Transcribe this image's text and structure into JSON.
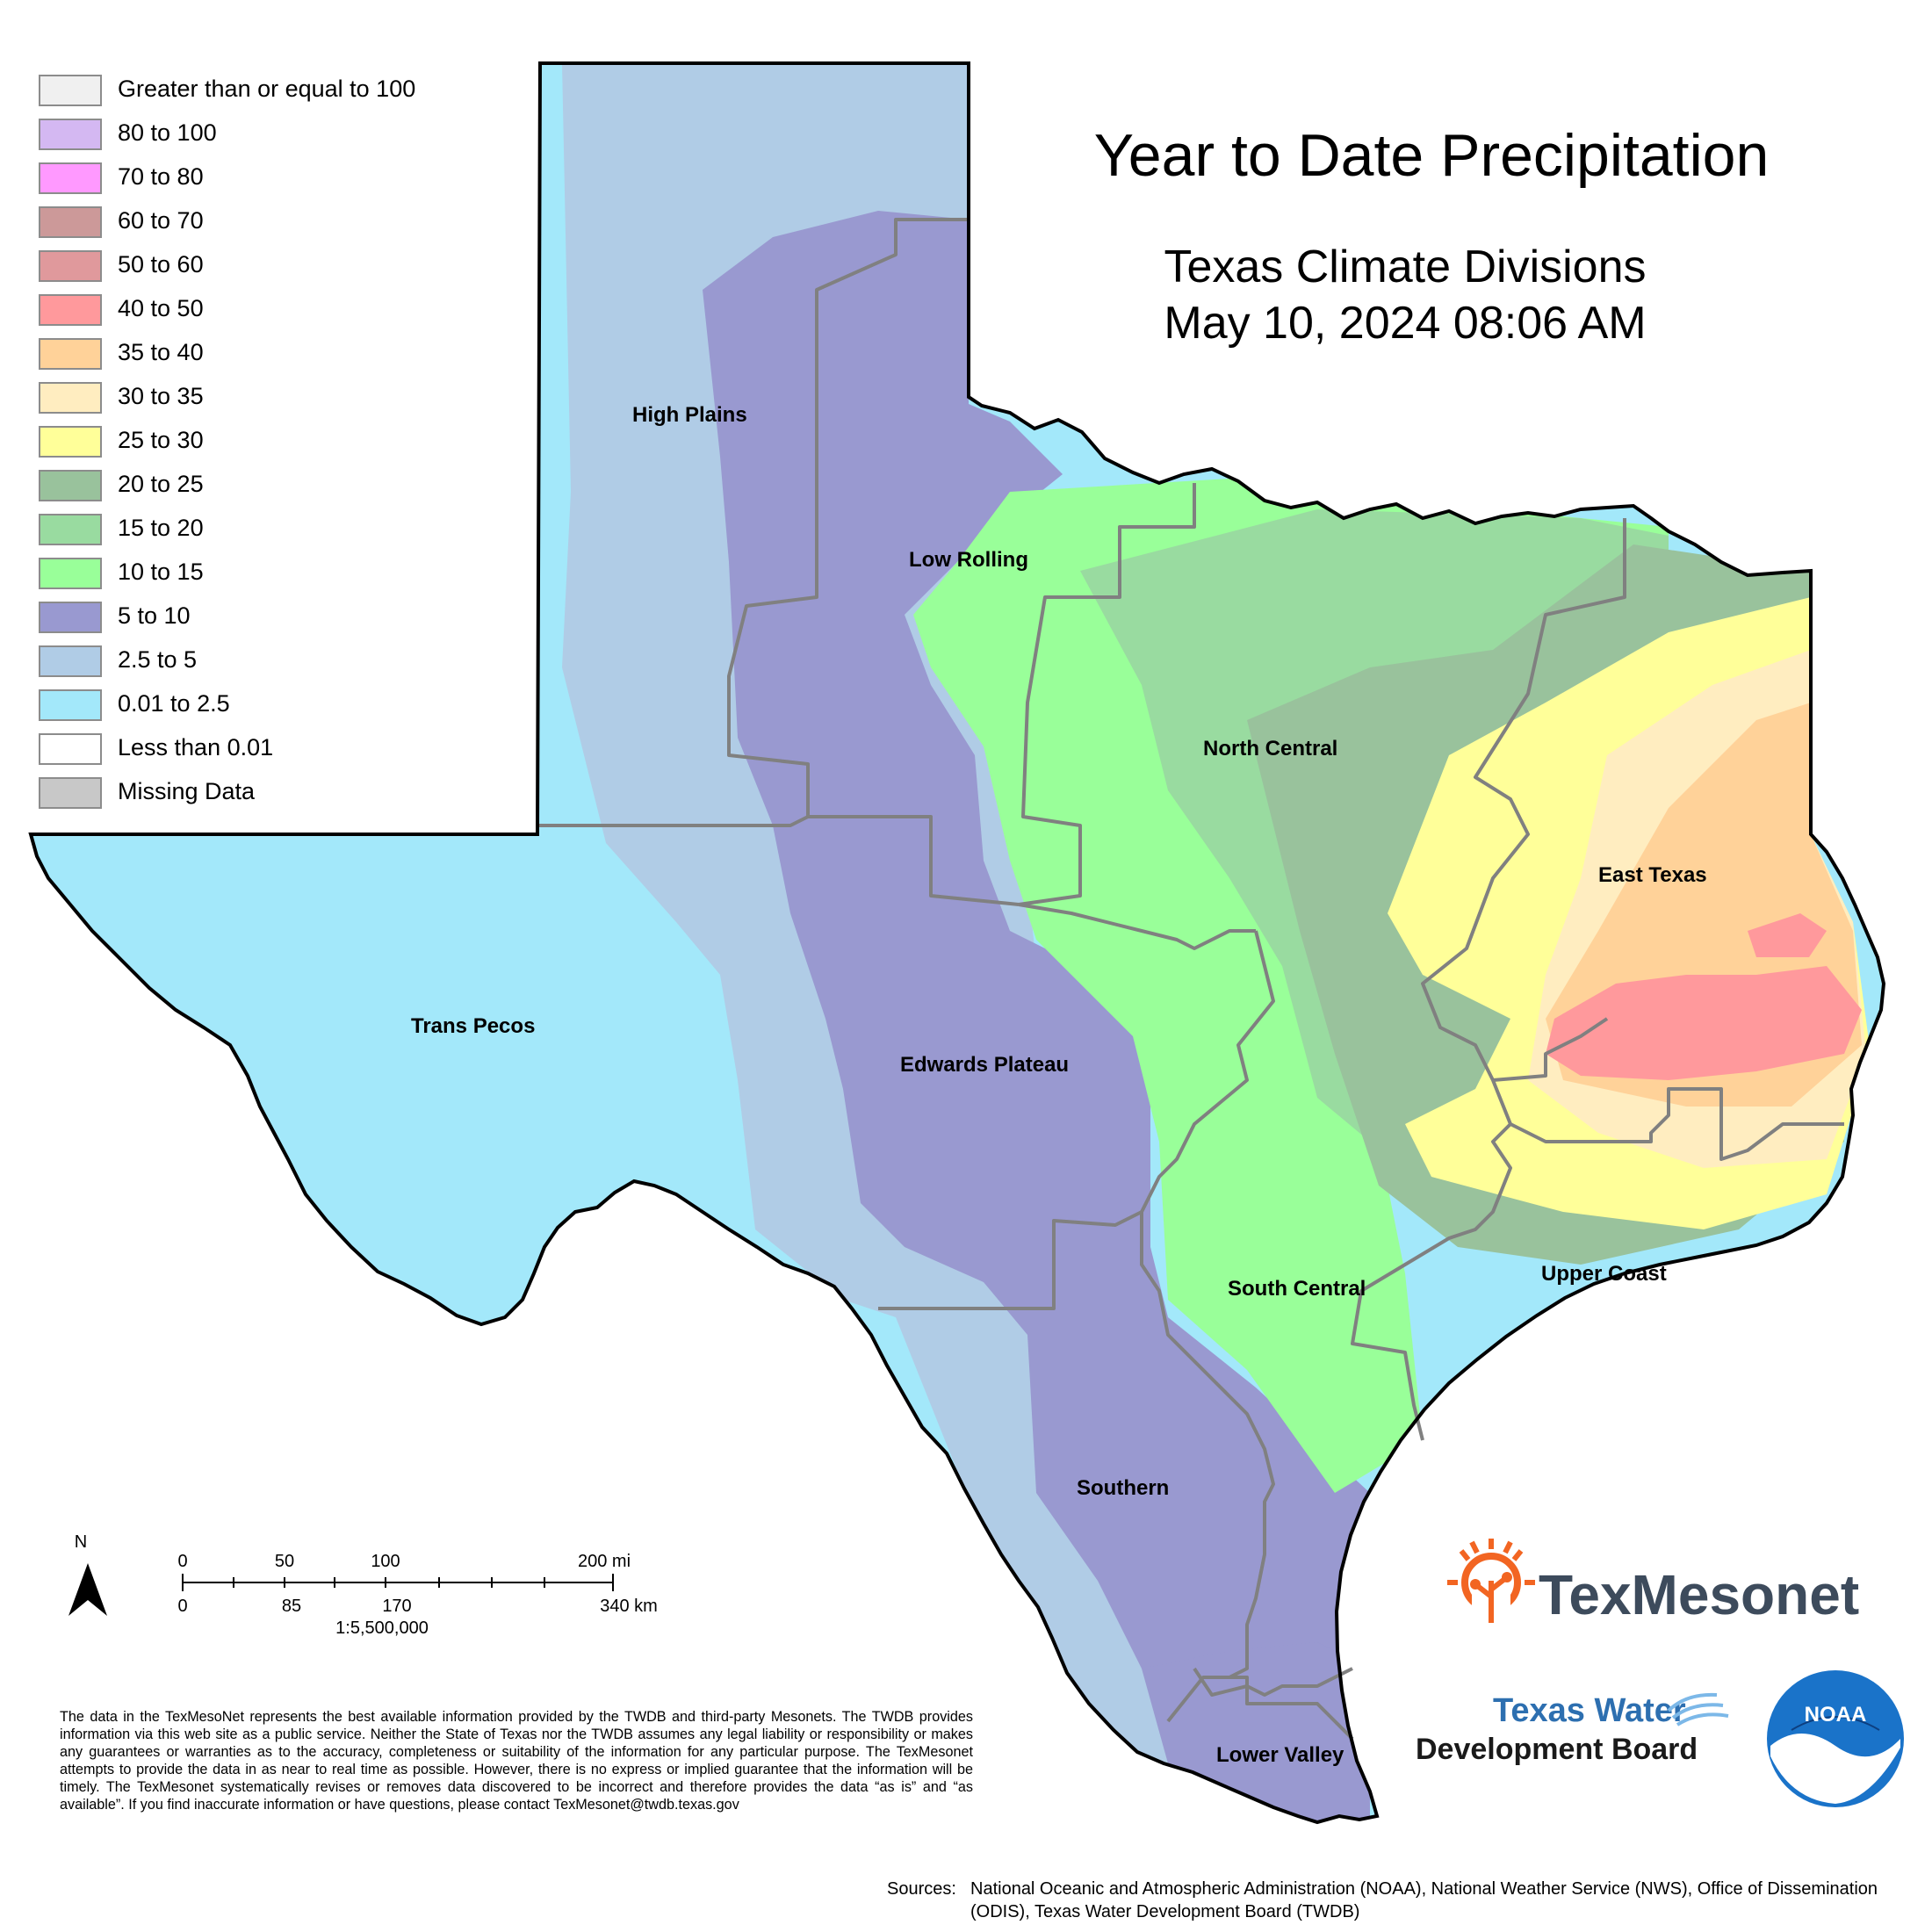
{
  "title": "Year to Date Precipitation",
  "subtitle_line1": "Texas Climate Divisions",
  "subtitle_line2": "May 10, 2024 08:06 AM",
  "legend": [
    {
      "label": "Greater than or equal to 100",
      "color": "#f0f0f0"
    },
    {
      "label": "80 to 100",
      "color": "#d4b8f2"
    },
    {
      "label": "70 to 80",
      "color": "#ff99ff"
    },
    {
      "label": "60 to 70",
      "color": "#cc9999"
    },
    {
      "label": "50 to 60",
      "color": "#e0999c"
    },
    {
      "label": "40 to 50",
      "color": "#ff999c"
    },
    {
      "label": "35 to 40",
      "color": "#ffd299"
    },
    {
      "label": "30 to 35",
      "color": "#ffedc0"
    },
    {
      "label": "25 to 30",
      "color": "#ffff99"
    },
    {
      "label": "20 to 25",
      "color": "#99c29c"
    },
    {
      "label": "15 to 20",
      "color": "#99dba0"
    },
    {
      "label": "10 to 15",
      "color": "#99ff99"
    },
    {
      "label": "5 to 10",
      "color": "#9999d0"
    },
    {
      "label": "2.5 to 5",
      "color": "#b0cce6"
    },
    {
      "label": "0.01 to 2.5",
      "color": "#a3e8fa"
    },
    {
      "label": "Less than 0.01",
      "color": "#ffffff"
    },
    {
      "label": "Missing Data",
      "color": "#c8c8c8"
    }
  ],
  "regions": {
    "high_plains": "High Plains",
    "low_rolling": "Low Rolling",
    "north_central": "North Central",
    "east_texas": "East Texas",
    "trans_pecos": "Trans Pecos",
    "edwards_plateau": "Edwards Plateau",
    "south_central": "South Central",
    "upper_coast": "Upper Coast",
    "southern": "Southern",
    "lower_valley": "Lower Valley"
  },
  "scale": {
    "north": "N",
    "mi_0": "0",
    "mi_50": "50",
    "mi_100": "100",
    "mi_200": "200 mi",
    "km_0": "0",
    "km_85": "85",
    "km_170": "170",
    "km_340": "340 km",
    "ratio": "1:5,500,000"
  },
  "disclaimer": "The data in the TexMesoNet represents the best available information provided by the TWDB and third-party Mesonets. The TWDB provides information via this web site as a public service. Neither the State of Texas nor the TWDB assumes any legal liability or responsibility or makes any guarantees or warranties as to the accuracy, completeness or suitability of the information for any particular purpose. The TexMesonet attempts to provide the data in as near to real time as possible. However, there is no express or implied guarantee that the information will be timely. The TexMesonet systematically revises or removes data discovered to be incorrect and therefore provides the data “as is” and “as available”. If you find inaccurate information or have questions, please contact TexMesonet@twdb.texas.gov",
  "sources_prefix": "Sources:",
  "sources_text": "National Oceanic and Atmospheric Administration (NOAA), National Weather Service (NWS), Office of Dissemination (ODIS), Texas Water Development Board (TWDB)",
  "logos": {
    "texmesonet": "TexMesonet",
    "twdb_line1": "Texas Water",
    "twdb_line2": "Development Board",
    "noaa": "NOAA"
  }
}
